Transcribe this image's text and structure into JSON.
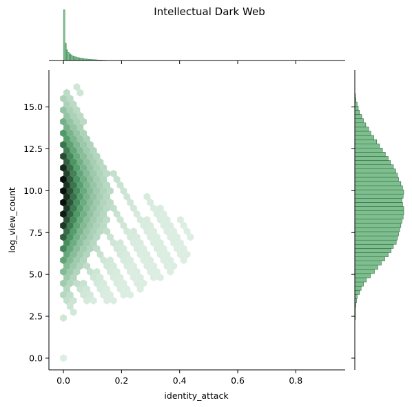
{
  "chart_data": {
    "type": "hexbin",
    "title": "Intellectual Dark Web",
    "xlabel": "identity_attack",
    "ylabel": "log_view_count",
    "xlim": [
      -0.05,
      0.97
    ],
    "ylim": [
      -0.7,
      17.2
    ],
    "x_ticks": [
      0.0,
      0.2,
      0.4,
      0.6,
      0.8
    ],
    "x_tick_labels": [
      "0.0",
      "0.2",
      "0.4",
      "0.6",
      "0.8"
    ],
    "y_ticks": [
      0.0,
      2.5,
      5.0,
      7.5,
      10.0,
      12.5,
      15.0
    ],
    "y_tick_labels": [
      "0.0",
      "2.5",
      "5.0",
      "7.5",
      "10.0",
      "12.5",
      "15.0"
    ],
    "grid": false,
    "colors": {
      "dark": "#0b120d",
      "mid": "#4e9a66",
      "light": "#dceee2",
      "hist_fill": "#7fbf8f",
      "hist_edge": "#2e6b3f"
    },
    "joint_extent": {
      "x_min": 0.0,
      "x_max": 0.44,
      "y_min": 2.4,
      "y_max": 16.2
    },
    "outlier_points": [
      {
        "x": 0.0,
        "y": 0.0
      }
    ],
    "marginal_x_hist": {
      "bin_width": 0.005,
      "x_start": 0.0,
      "counts": [
        100,
        34,
        21,
        16,
        13,
        11,
        9,
        8,
        7,
        6,
        5.5,
        5,
        4.5,
        4,
        3.5,
        3,
        2.8,
        2.5,
        2.2,
        2,
        1.8,
        1.6,
        1.4,
        1.2,
        1,
        0.9,
        0.8,
        0.7,
        0.6,
        0.5,
        0.45,
        0.4,
        0.35,
        0.3,
        0.25,
        0.2,
        0.18,
        0.15,
        0.12,
        0.1,
        0.08,
        0.06,
        0.05,
        0.04,
        0.03,
        0.02
      ]
    },
    "marginal_y_hist": {
      "bin_width": 0.25,
      "y_start": 2.3,
      "counts": [
        1,
        1,
        1,
        2,
        3,
        4,
        8,
        11,
        15,
        20,
        27,
        34,
        40,
        46,
        52,
        58,
        63,
        67,
        72,
        74,
        76,
        78,
        80,
        82,
        84,
        85,
        85,
        83,
        82,
        84,
        85,
        83,
        80,
        76,
        74,
        71,
        67,
        62,
        58,
        53,
        48,
        43,
        38,
        33,
        28,
        24,
        19,
        15,
        12,
        8,
        6,
        4,
        2,
        1
      ]
    }
  }
}
